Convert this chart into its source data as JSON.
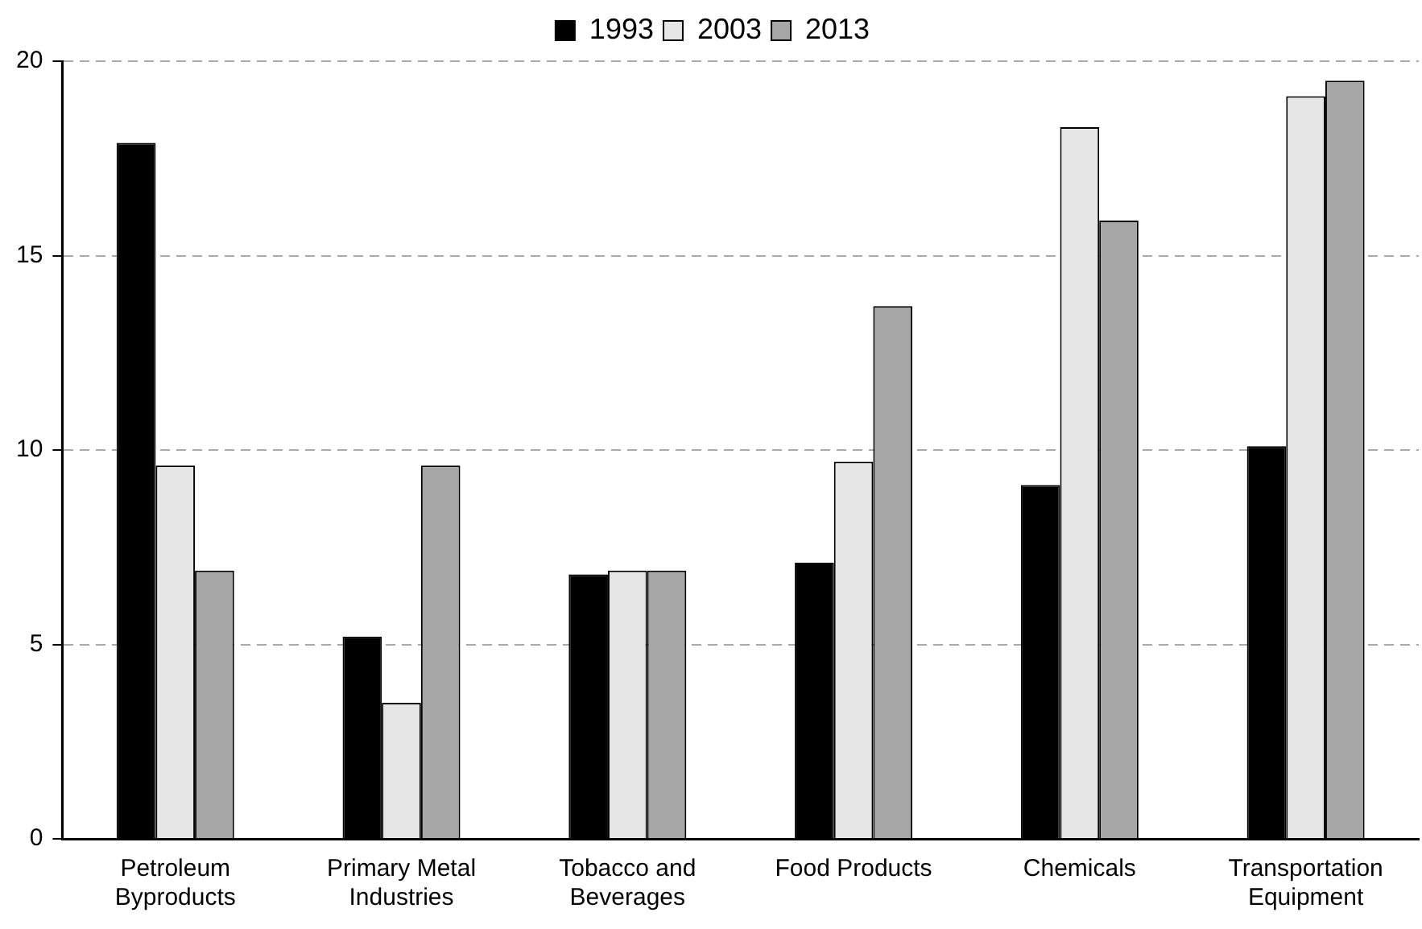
{
  "chart_data": {
    "type": "bar",
    "categories": [
      "Petroleum Byproducts",
      "Primary Metal Industries",
      "Tobacco and Beverages",
      "Food Products",
      "Chemicals",
      "Transportation Equipment"
    ],
    "series": [
      {
        "name": "1993",
        "color": "#000000",
        "values": [
          17.9,
          5.2,
          6.8,
          7.1,
          9.1,
          10.1
        ]
      },
      {
        "name": "2003",
        "color": "#e6e6e6",
        "values": [
          9.6,
          3.5,
          6.9,
          9.7,
          18.3,
          19.1
        ]
      },
      {
        "name": "2013",
        "color": "#a6a6a6",
        "values": [
          6.9,
          9.6,
          6.9,
          13.7,
          15.9,
          19.5
        ]
      }
    ],
    "ylim": [
      0,
      20
    ],
    "yticks": [
      0,
      5,
      10,
      15,
      20
    ],
    "grid": "y",
    "legend": "top"
  }
}
